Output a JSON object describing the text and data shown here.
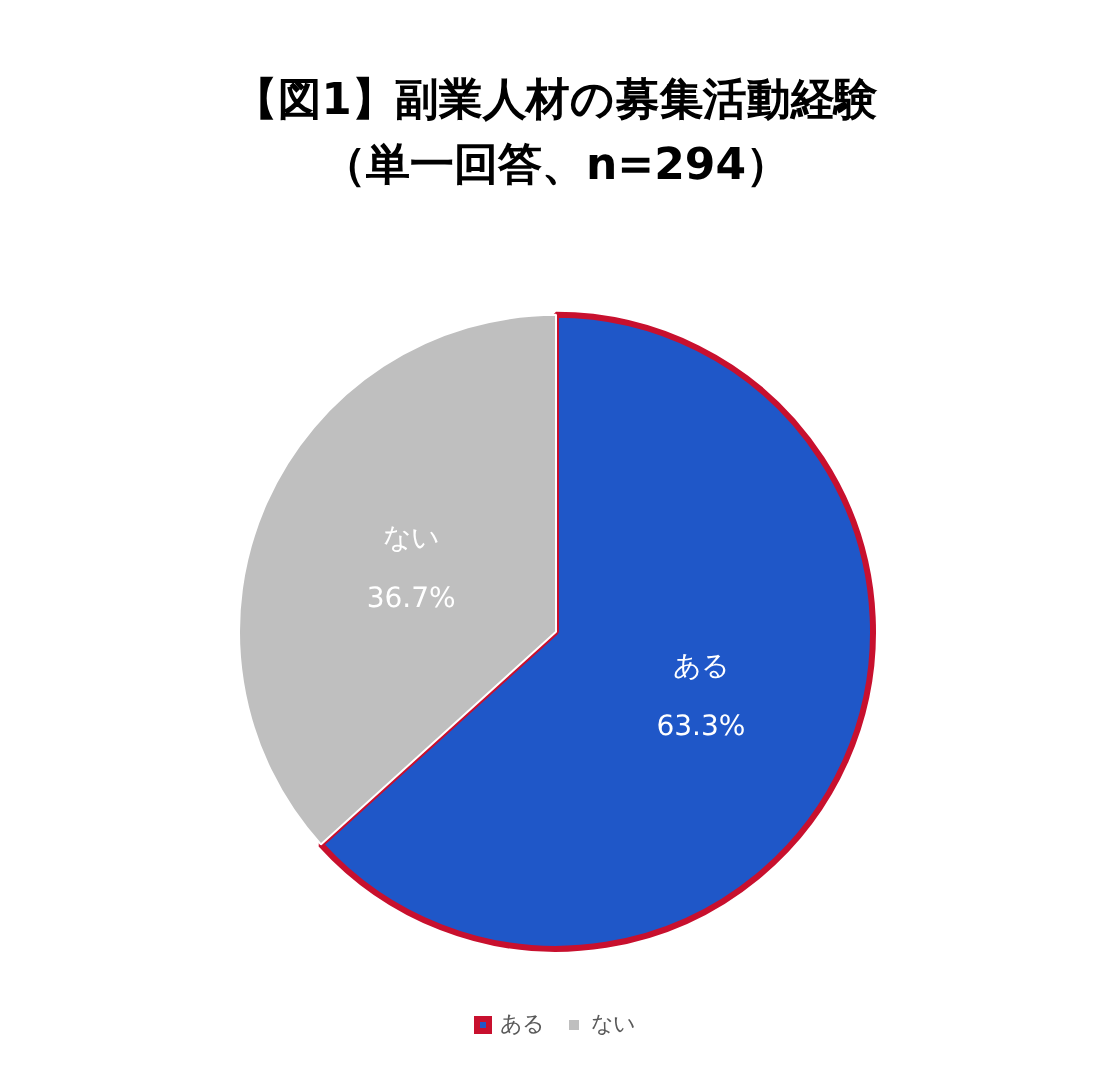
{
  "chart_data": {
    "type": "pie",
    "title": "【図1】副業人材の募集活動経験",
    "subtitle": "（単一回答、n=294）",
    "categories": [
      "ある",
      "ない"
    ],
    "values": [
      63.3,
      36.7
    ],
    "colors": [
      "#1f57c8",
      "#bfbfbf"
    ],
    "value_labels": [
      "63.3%",
      "36.7%"
    ],
    "legend": "bottom"
  }
}
